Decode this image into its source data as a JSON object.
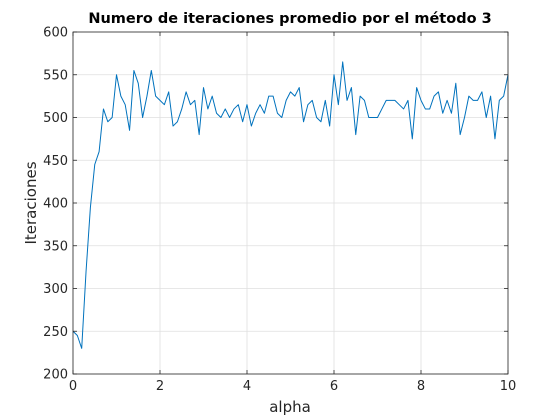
{
  "chart_data": {
    "type": "line",
    "title": "Numero de iteraciones promedio por el método 3",
    "xlabel": "alpha",
    "ylabel": "Iteraciones",
    "xlim": [
      0,
      10
    ],
    "ylim": [
      200,
      600
    ],
    "grid": true,
    "xticks": [
      0,
      2,
      4,
      6,
      8,
      10
    ],
    "yticks": [
      200,
      250,
      300,
      350,
      400,
      450,
      500,
      550,
      600
    ],
    "xtick_labels": [
      "0",
      "2",
      "4",
      "6",
      "8",
      "10"
    ],
    "ytick_labels": [
      "200",
      "250",
      "300",
      "350",
      "400",
      "450",
      "500",
      "550",
      "600"
    ],
    "series": [
      {
        "color": "#0072BD",
        "x": [
          0,
          0.1,
          0.2,
          0.3,
          0.4,
          0.5,
          0.6,
          0.7,
          0.8,
          0.9,
          1.0,
          1.1,
          1.2,
          1.3,
          1.4,
          1.5,
          1.6,
          1.7,
          1.8,
          1.9,
          2.0,
          2.1,
          2.2,
          2.3,
          2.4,
          2.5,
          2.6,
          2.7,
          2.8,
          2.9,
          3.0,
          3.1,
          3.2,
          3.3,
          3.4,
          3.5,
          3.6,
          3.7,
          3.8,
          3.9,
          4.0,
          4.1,
          4.2,
          4.3,
          4.4,
          4.5,
          4.6,
          4.7,
          4.8,
          4.9,
          5.0,
          5.1,
          5.2,
          5.3,
          5.4,
          5.5,
          5.6,
          5.7,
          5.8,
          5.9,
          6.0,
          6.1,
          6.2,
          6.3,
          6.4,
          6.5,
          6.6,
          6.7,
          6.8,
          6.9,
          7.0,
          7.1,
          7.2,
          7.3,
          7.4,
          7.5,
          7.6,
          7.7,
          7.8,
          7.9,
          8.0,
          8.1,
          8.2,
          8.3,
          8.4,
          8.5,
          8.6,
          8.7,
          8.8,
          8.9,
          9.0,
          9.1,
          9.2,
          9.3,
          9.4,
          9.5,
          9.6,
          9.7,
          9.8,
          9.9,
          10.0
        ],
        "y": [
          250,
          245,
          230,
          320,
          395,
          445,
          460,
          510,
          495,
          500,
          550,
          525,
          515,
          485,
          555,
          540,
          500,
          525,
          555,
          525,
          520,
          515,
          530,
          490,
          495,
          510,
          530,
          515,
          520,
          480,
          535,
          510,
          525,
          505,
          500,
          510,
          500,
          510,
          515,
          495,
          515,
          490,
          505,
          515,
          505,
          525,
          525,
          505,
          500,
          520,
          530,
          525,
          535,
          495,
          515,
          520,
          500,
          495,
          520,
          490,
          550,
          515,
          565,
          520,
          535,
          480,
          525,
          520,
          500,
          500,
          500,
          510,
          520,
          520,
          520,
          515,
          510,
          520,
          475,
          535,
          520,
          510,
          510,
          525,
          530,
          505,
          520,
          505,
          540,
          480,
          500,
          525,
          520,
          520,
          530,
          500,
          525,
          475,
          520,
          525,
          550
        ]
      }
    ]
  }
}
